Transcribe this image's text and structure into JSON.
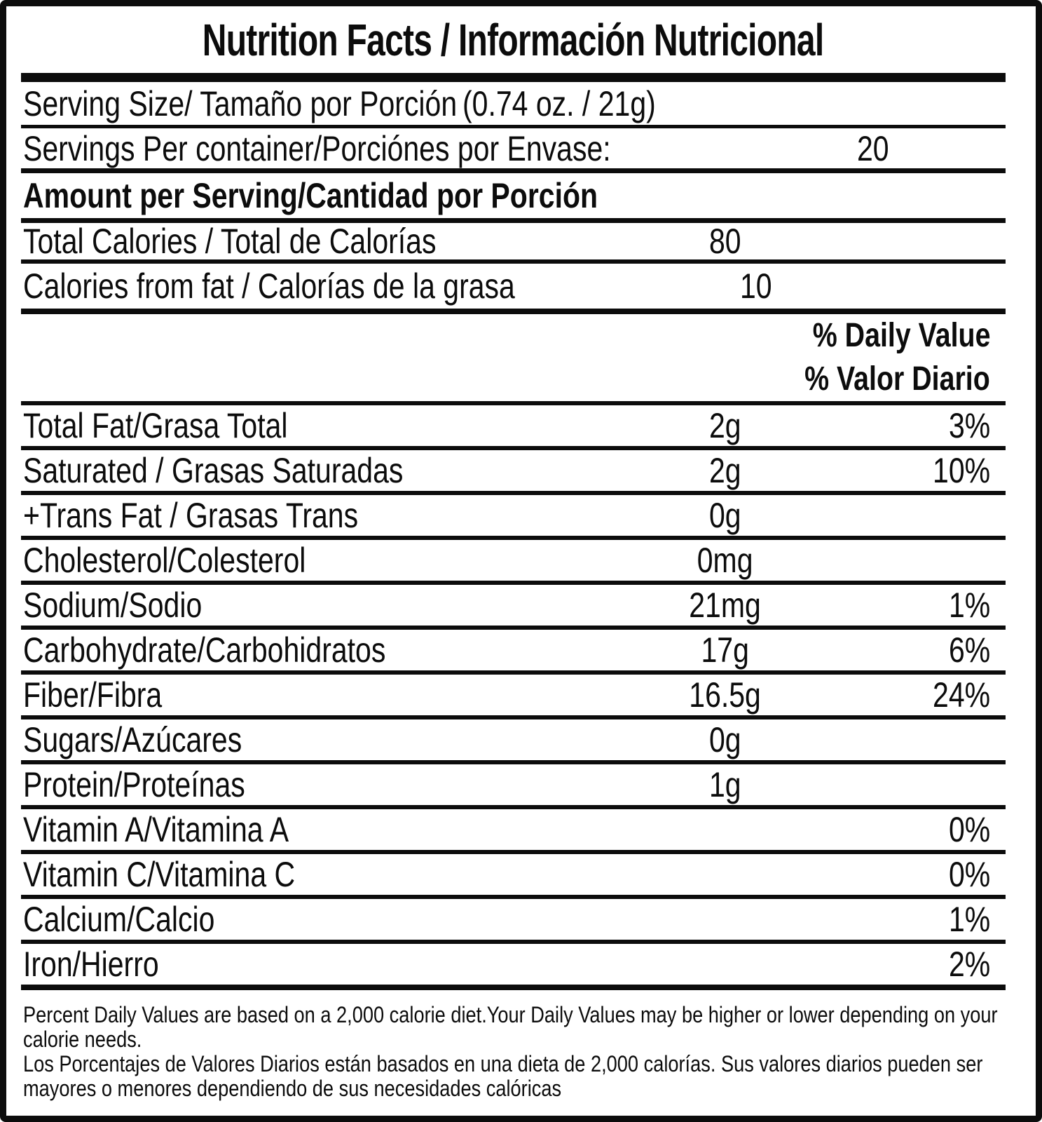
{
  "title": "Nutrition Facts / Información Nutricional",
  "serving_size": {
    "label": "Serving Size/ Tamaño por Porción",
    "value": "(0.74 oz. / 21g)"
  },
  "servings_per_container": {
    "label": "Servings Per container/Porciónes por Envase:",
    "value": "20"
  },
  "amount_heading": "Amount per Serving/Cantidad por Porción",
  "calories": {
    "total": {
      "label": "Total Calories / Total de Calorías",
      "value": "80"
    },
    "from_fat": {
      "label": "Calories from fat / Calorías de la grasa",
      "value": "10"
    }
  },
  "daily_value_heading": {
    "en": "% Daily Value",
    "es": "% Valor Diario"
  },
  "nutrients": [
    {
      "label": "Total Fat/Grasa Total",
      "amount": "2g",
      "pct": "3%"
    },
    {
      "label": "Saturated / Grasas Saturadas",
      "amount": "2g",
      "pct": "10%"
    },
    {
      "label": "+Trans Fat / Grasas Trans",
      "amount": "0g",
      "pct": ""
    },
    {
      "label": "Cholesterol/Colesterol",
      "amount": "0mg",
      "pct": ""
    },
    {
      "label": "Sodium/Sodio",
      "amount": "21mg",
      "pct": "1%"
    },
    {
      "label": "Carbohydrate/Carbohidratos",
      "amount": "17g",
      "pct": "6%"
    },
    {
      "label": "Fiber/Fibra",
      "amount": "16.5g",
      "pct": "24%"
    },
    {
      "label": "Sugars/Azúcares",
      "amount": "0g",
      "pct": ""
    },
    {
      "label": "Protein/Proteínas",
      "amount": "1g",
      "pct": ""
    },
    {
      "label": "Vitamin A/Vitamina A",
      "amount": "",
      "pct": "0%"
    },
    {
      "label": "Vitamin C/Vitamina C",
      "amount": "",
      "pct": "0%"
    },
    {
      "label": "Calcium/Calcio",
      "amount": "",
      "pct": "1%"
    },
    {
      "label": "Iron/Hierro",
      "amount": "",
      "pct": "2%"
    }
  ],
  "footnotes": {
    "en": "Percent Daily Values are based on a 2,000 calorie diet.Your Daily Values may be higher or lower depending on your calorie needs.",
    "es": "Los Porcentajes de Valores Diarios están basados en una dieta de 2,000 calorías. Sus valores diarios pueden ser mayores o menores dependiendo de sus necesidades calóricas"
  },
  "colors": {
    "ink": "#0c0c0c",
    "background": "#ffffff"
  }
}
